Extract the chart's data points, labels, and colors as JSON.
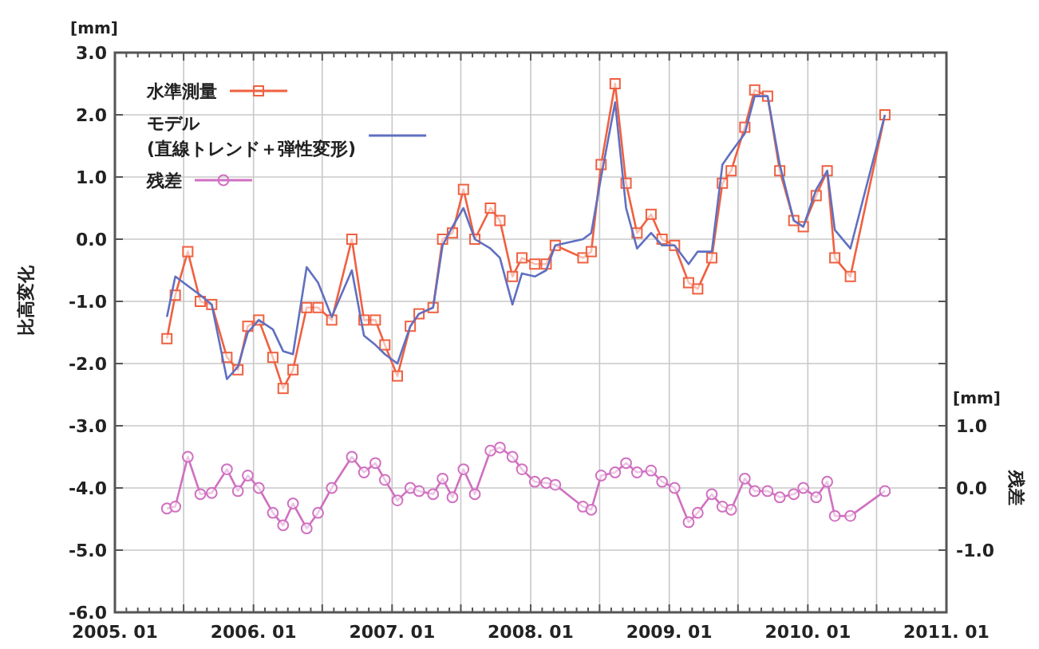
{
  "chart_data": {
    "type": "line",
    "ylabel": "比高変化",
    "y2label": "残差",
    "annotations": [
      "[mm]",
      "[mm]"
    ],
    "xlim": [
      "2005-01",
      "2011-01"
    ],
    "xticks": [
      {
        "value": "2005-01",
        "label": "2005. 01"
      },
      {
        "value": "2005-07",
        "label": null
      },
      {
        "value": "2006-01",
        "label": "2006. 01"
      },
      {
        "value": "2006-07",
        "label": null
      },
      {
        "value": "2007-01",
        "label": "2007. 01"
      },
      {
        "value": "2007-07",
        "label": null
      },
      {
        "value": "2008-01",
        "label": "2008. 01"
      },
      {
        "value": "2008-07",
        "label": null
      },
      {
        "value": "2009-01",
        "label": "2009. 01"
      },
      {
        "value": "2009-07",
        "label": null
      },
      {
        "value": "2010-01",
        "label": "2010. 01"
      },
      {
        "value": "2010-07",
        "label": null
      },
      {
        "value": "2011-01",
        "label": "2011. 01"
      }
    ],
    "ylim": [
      -6,
      3
    ],
    "yticks": [
      {
        "value": 3,
        "label": "3.0"
      },
      {
        "value": 2,
        "label": "2.0"
      },
      {
        "value": 1,
        "label": "1.0"
      },
      {
        "value": 0,
        "label": "0.0"
      },
      {
        "value": -1,
        "label": "-1.0"
      },
      {
        "value": -2,
        "label": "-2.0"
      },
      {
        "value": -3,
        "label": "-3.0"
      },
      {
        "value": -4,
        "label": "-4.0"
      },
      {
        "value": -5,
        "label": "-5.0"
      },
      {
        "value": -6,
        "label": "-6.0"
      }
    ],
    "y2lim": [
      -2,
      7
    ],
    "y2ticks": [
      {
        "value": 1,
        "label": "1.0"
      },
      {
        "value": 0,
        "label": "0.0"
      },
      {
        "value": -1,
        "label": "-1.0"
      }
    ],
    "grid": true,
    "legend": "top left",
    "x": [
      "2005-05-18",
      "2005-06-09",
      "2005-07-12",
      "2005-08-14",
      "2005-09-13",
      "2005-10-23",
      "2005-11-21",
      "2005-12-17",
      "2006-01-15",
      "2006-02-21",
      "2006-03-20",
      "2006-04-15",
      "2006-05-21",
      "2006-06-20",
      "2006-07-26",
      "2006-09-17",
      "2006-10-19",
      "2006-11-18",
      "2006-12-13",
      "2007-01-15",
      "2007-02-18",
      "2007-03-13",
      "2007-04-19",
      "2007-05-14",
      "2007-06-09",
      "2007-07-08",
      "2007-08-07",
      "2007-09-17",
      "2007-10-12",
      "2007-11-14",
      "2007-12-09",
      "2008-01-12",
      "2008-02-11",
      "2008-03-06",
      "2008-05-18",
      "2008-06-09",
      "2008-07-05",
      "2008-08-11",
      "2008-09-09",
      "2008-10-08",
      "2008-11-14",
      "2008-12-13",
      "2009-01-15",
      "2009-02-21",
      "2009-03-17",
      "2009-04-23",
      "2009-05-21",
      "2009-06-13",
      "2009-07-19",
      "2009-08-14",
      "2009-09-17",
      "2009-10-19",
      "2009-11-25",
      "2009-12-20",
      "2010-01-23",
      "2010-02-21",
      "2010-03-13",
      "2010-04-23",
      "2010-07-23"
    ],
    "series": [
      {
        "name": "水準測量",
        "color": "#f06040",
        "marker": "square",
        "values": [
          -1.6,
          -0.9,
          -0.2,
          -1.0,
          -1.05,
          -1.9,
          -2.1,
          -1.4,
          -1.3,
          -1.9,
          -2.4,
          -2.1,
          -1.1,
          -1.1,
          -1.3,
          0.0,
          -1.3,
          -1.3,
          -1.7,
          -2.2,
          -1.4,
          -1.2,
          -1.1,
          0.0,
          0.1,
          0.8,
          0.0,
          0.5,
          0.3,
          -0.6,
          -0.3,
          -0.4,
          -0.4,
          -0.1,
          -0.3,
          -0.2,
          1.2,
          2.5,
          0.9,
          0.1,
          0.4,
          0.0,
          -0.1,
          -0.7,
          -0.8,
          -0.3,
          0.9,
          1.1,
          1.8,
          2.4,
          2.3,
          1.1,
          0.3,
          0.2,
          0.7,
          1.1,
          -0.3,
          -0.6,
          2.0
        ]
      },
      {
        "name": "モデル\n(直線トレンド＋弾性変形)",
        "color": "#6070c0",
        "marker": "none",
        "values": [
          -1.25,
          -0.6,
          -0.75,
          -0.9,
          -1.05,
          -2.25,
          -2.05,
          -1.5,
          -1.3,
          -1.45,
          -1.8,
          -1.85,
          -0.45,
          -0.7,
          -1.25,
          -0.5,
          -1.55,
          -1.7,
          -1.85,
          -2.0,
          -1.4,
          -1.2,
          -1.1,
          -0.1,
          0.2,
          0.5,
          0.0,
          -0.15,
          -0.3,
          -1.05,
          -0.55,
          -0.6,
          -0.5,
          -0.1,
          0.0,
          0.1,
          1.0,
          2.2,
          0.5,
          -0.15,
          0.1,
          -0.1,
          -0.1,
          -0.4,
          -0.2,
          -0.2,
          1.2,
          1.4,
          1.7,
          2.3,
          2.3,
          1.2,
          0.3,
          0.2,
          0.8,
          1.1,
          0.15,
          -0.15,
          2.0
        ]
      },
      {
        "name": "残差",
        "color": "#d070c0",
        "marker": "circle",
        "axis": "y2",
        "values": [
          -0.33,
          -0.3,
          0.5,
          -0.1,
          -0.08,
          0.3,
          -0.05,
          0.2,
          0.0,
          -0.4,
          -0.6,
          -0.25,
          -0.65,
          -0.4,
          0.0,
          0.5,
          0.25,
          0.4,
          0.13,
          -0.2,
          0.0,
          -0.05,
          -0.1,
          0.15,
          -0.15,
          0.3,
          -0.1,
          0.6,
          0.65,
          0.5,
          0.3,
          0.1,
          0.08,
          0.05,
          -0.3,
          -0.35,
          0.2,
          0.25,
          0.4,
          0.25,
          0.28,
          0.1,
          0.0,
          -0.55,
          -0.4,
          -0.1,
          -0.3,
          -0.35,
          0.15,
          -0.05,
          -0.05,
          -0.15,
          -0.1,
          0.0,
          -0.15,
          0.1,
          -0.45,
          -0.45,
          -0.05
        ]
      }
    ]
  }
}
